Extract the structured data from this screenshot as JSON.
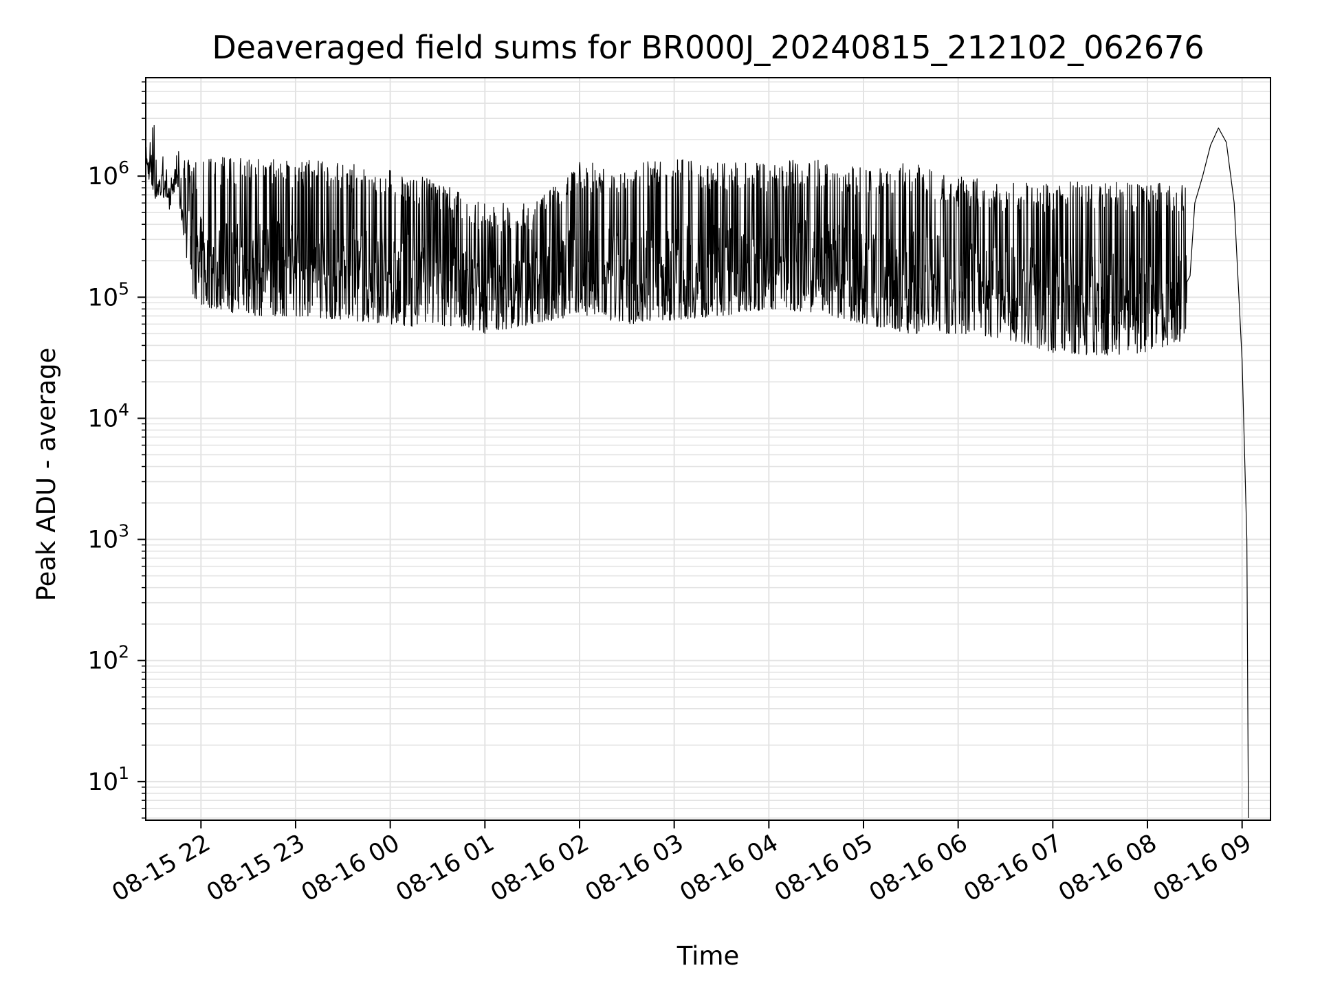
{
  "chart_data": {
    "type": "line",
    "title": "Deaveraged field sums for BR000J_20240815_212102_062676",
    "xlabel": "Time",
    "ylabel": "Peak ADU - average",
    "yscale": "log",
    "grid": true,
    "line_color": "#000000",
    "grid_color": "#e3e3e3",
    "xlim": [
      "2024-08-15 21:25",
      "2024-08-16 09:18"
    ],
    "ylim": [
      4.8,
      6500000
    ],
    "x_ticks": [
      {
        "label": "08-15 22",
        "t": "2024-08-15 22:00"
      },
      {
        "label": "08-15 23",
        "t": "2024-08-15 23:00"
      },
      {
        "label": "08-16 00",
        "t": "2024-08-16 00:00"
      },
      {
        "label": "08-16 01",
        "t": "2024-08-16 01:00"
      },
      {
        "label": "08-16 02",
        "t": "2024-08-16 02:00"
      },
      {
        "label": "08-16 03",
        "t": "2024-08-16 03:00"
      },
      {
        "label": "08-16 04",
        "t": "2024-08-16 04:00"
      },
      {
        "label": "08-16 05",
        "t": "2024-08-16 05:00"
      },
      {
        "label": "08-16 06",
        "t": "2024-08-16 06:00"
      },
      {
        "label": "08-16 07",
        "t": "2024-08-16 07:00"
      },
      {
        "label": "08-16 08",
        "t": "2024-08-16 08:00"
      },
      {
        "label": "08-16 09",
        "t": "2024-08-16 09:00"
      }
    ],
    "y_ticks": [
      {
        "base": "10",
        "exp": "1",
        "value": 10
      },
      {
        "base": "10",
        "exp": "2",
        "value": 100
      },
      {
        "base": "10",
        "exp": "3",
        "value": 1000
      },
      {
        "base": "10",
        "exp": "4",
        "value": 10000
      },
      {
        "base": "10",
        "exp": "5",
        "value": 100000
      },
      {
        "base": "10",
        "exp": "6",
        "value": 1000000
      }
    ],
    "series": [
      {
        "envelope": [
          {
            "t": "2024-08-15 21:25",
            "low": 1200000,
            "high": 1900000
          },
          {
            "t": "2024-08-15 21:30",
            "low": 650000,
            "high": 3200000
          },
          {
            "t": "2024-08-15 21:40",
            "low": 650000,
            "high": 900000
          },
          {
            "t": "2024-08-15 21:45",
            "low": 800000,
            "high": 2000000
          },
          {
            "t": "2024-08-15 21:50",
            "low": 250000,
            "high": 1500000
          },
          {
            "t": "2024-08-15 21:55",
            "low": 100000,
            "high": 1200000
          },
          {
            "t": "2024-08-15 22:00",
            "low": 85000,
            "high": 1500000
          },
          {
            "t": "2024-08-15 22:30",
            "low": 70000,
            "high": 1400000
          },
          {
            "t": "2024-08-15 23:00",
            "low": 70000,
            "high": 1400000
          },
          {
            "t": "2024-08-15 23:30",
            "low": 65000,
            "high": 1300000
          },
          {
            "t": "2024-08-16 00:00",
            "low": 60000,
            "high": 1200000
          },
          {
            "t": "2024-08-16 00:30",
            "low": 55000,
            "high": 900000
          },
          {
            "t": "2024-08-16 01:00",
            "low": 50000,
            "high": 600000
          },
          {
            "t": "2024-08-16 01:30",
            "low": 60000,
            "high": 600000
          },
          {
            "t": "2024-08-16 02:00",
            "low": 70000,
            "high": 1300000
          },
          {
            "t": "2024-08-16 02:30",
            "low": 60000,
            "high": 1300000
          },
          {
            "t": "2024-08-16 03:00",
            "low": 65000,
            "high": 1400000
          },
          {
            "t": "2024-08-16 03:30",
            "low": 70000,
            "high": 1300000
          },
          {
            "t": "2024-08-16 04:00",
            "low": 80000,
            "high": 1300000
          },
          {
            "t": "2024-08-16 04:30",
            "low": 75000,
            "high": 1400000
          },
          {
            "t": "2024-08-16 05:00",
            "low": 60000,
            "high": 1200000
          },
          {
            "t": "2024-08-16 05:30",
            "low": 50000,
            "high": 1300000
          },
          {
            "t": "2024-08-16 06:00",
            "low": 50000,
            "high": 1000000
          },
          {
            "t": "2024-08-16 06:30",
            "low": 45000,
            "high": 900000
          },
          {
            "t": "2024-08-16 07:00",
            "low": 35000,
            "high": 900000
          },
          {
            "t": "2024-08-16 07:30",
            "low": 33000,
            "high": 900000
          },
          {
            "t": "2024-08-16 08:00",
            "low": 35000,
            "high": 900000
          },
          {
            "t": "2024-08-16 08:25",
            "low": 45000,
            "high": 900000
          }
        ],
        "points": [
          {
            "t": "2024-08-16 08:27",
            "y": 150000
          },
          {
            "t": "2024-08-16 08:30",
            "y": 600000
          },
          {
            "t": "2024-08-16 08:35",
            "y": 1000000
          },
          {
            "t": "2024-08-16 08:40",
            "y": 1800000
          },
          {
            "t": "2024-08-16 08:45",
            "y": 2500000
          },
          {
            "t": "2024-08-16 08:50",
            "y": 1900000
          },
          {
            "t": "2024-08-16 08:55",
            "y": 600000
          },
          {
            "t": "2024-08-16 09:00",
            "y": 30000
          },
          {
            "t": "2024-08-16 09:03",
            "y": 1000
          },
          {
            "t": "2024-08-16 09:04",
            "y": 5
          }
        ]
      }
    ]
  }
}
